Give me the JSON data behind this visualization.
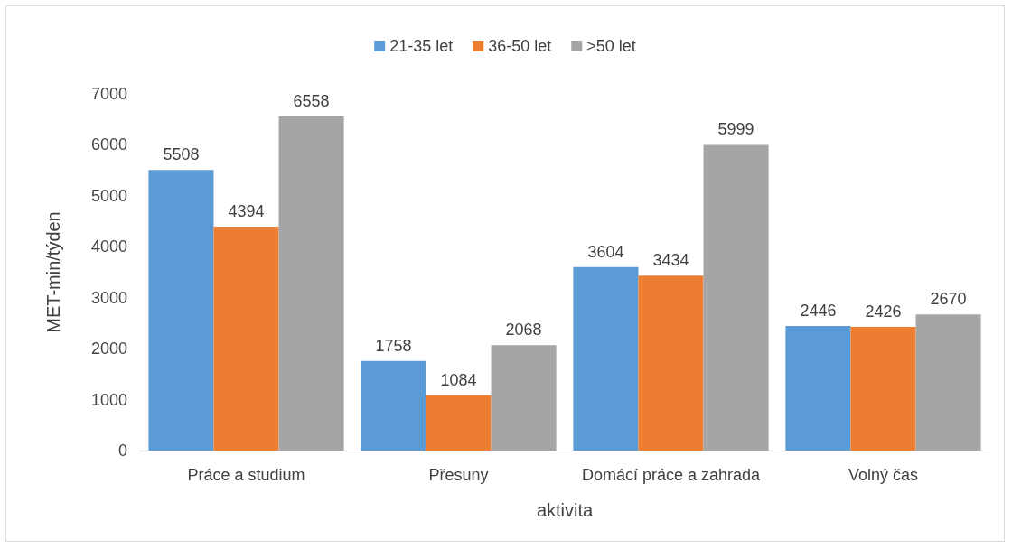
{
  "chart_data": {
    "type": "bar",
    "xlabel": "aktivita",
    "ylabel": "MET-min/týden",
    "categories": [
      "Práce a studium",
      "Přesuny",
      "Domácí práce a zahrada",
      "Volný čas"
    ],
    "series": [
      {
        "name": "21-35 let",
        "color": "#5b9bd5",
        "values": [
          5508,
          1758,
          3604,
          2446
        ]
      },
      {
        "name": "36-50 let",
        "color": "#ed7d31",
        "values": [
          4394,
          1084,
          3434,
          2426
        ]
      },
      {
        "name": ">50 let",
        "color": "#a5a5a5",
        "values": [
          6558,
          2068,
          5999,
          2670
        ]
      }
    ],
    "ylim": [
      0,
      7000
    ],
    "yticks": [
      0,
      1000,
      2000,
      3000,
      4000,
      5000,
      6000,
      7000
    ],
    "grid": false,
    "legend": "top",
    "data_labels": true
  }
}
